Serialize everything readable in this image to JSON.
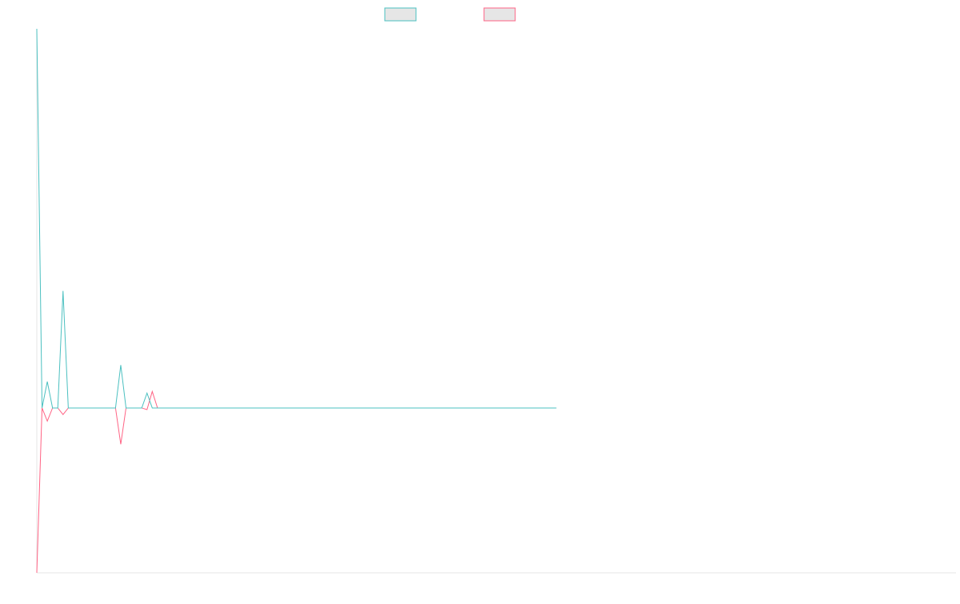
{
  "chart_data": {
    "type": "line",
    "title": "",
    "xlabel": "",
    "ylabel": "",
    "grid": false,
    "legend_position": "top-center",
    "x_count": 100,
    "ylim": [
      -100,
      230
    ],
    "series": [
      {
        "name": "",
        "color": "#4bc0c0",
        "values": [
          230,
          0,
          16,
          0,
          0,
          71,
          0,
          0,
          0,
          0,
          0,
          0,
          0,
          0,
          0,
          0,
          26,
          0,
          0,
          0,
          0,
          9,
          0,
          0,
          0,
          0,
          0,
          0,
          0,
          0,
          0,
          0,
          0,
          0,
          0,
          0,
          0,
          0,
          0,
          0,
          0,
          0,
          0,
          0,
          0,
          0,
          0,
          0,
          0,
          0,
          0,
          0,
          0,
          0,
          0,
          0,
          0,
          0,
          0,
          0,
          0,
          0,
          0,
          0,
          0,
          0,
          0,
          0,
          0,
          0,
          0,
          0,
          0,
          0,
          0,
          0,
          0,
          0,
          0,
          0,
          0,
          0,
          0,
          0,
          0,
          0,
          0,
          0,
          0,
          0,
          0,
          0,
          0,
          0,
          0,
          0,
          0,
          0,
          0,
          0
        ]
      },
      {
        "name": "",
        "color": "#ff6384",
        "values": [
          -100,
          0,
          -8,
          0,
          0,
          -4,
          0,
          0,
          0,
          0,
          0,
          0,
          0,
          0,
          0,
          0,
          -22,
          0,
          0,
          0,
          0,
          -1,
          10,
          0,
          0,
          0,
          0,
          0,
          0,
          0,
          0,
          0,
          0,
          0,
          0,
          0,
          0,
          0,
          0,
          0,
          0,
          0,
          0,
          0,
          0,
          0,
          0,
          0,
          0,
          0,
          0,
          0,
          0,
          0,
          0,
          0,
          0,
          0,
          0,
          0,
          0,
          0,
          0,
          0,
          0,
          0,
          0,
          0,
          0,
          0,
          0,
          0,
          0,
          0,
          0,
          0,
          0,
          0,
          0,
          0,
          0,
          0,
          0,
          0,
          0,
          0,
          0,
          0,
          0,
          0,
          0,
          0,
          0,
          0,
          0,
          0,
          0,
          0,
          0,
          0
        ]
      }
    ]
  }
}
